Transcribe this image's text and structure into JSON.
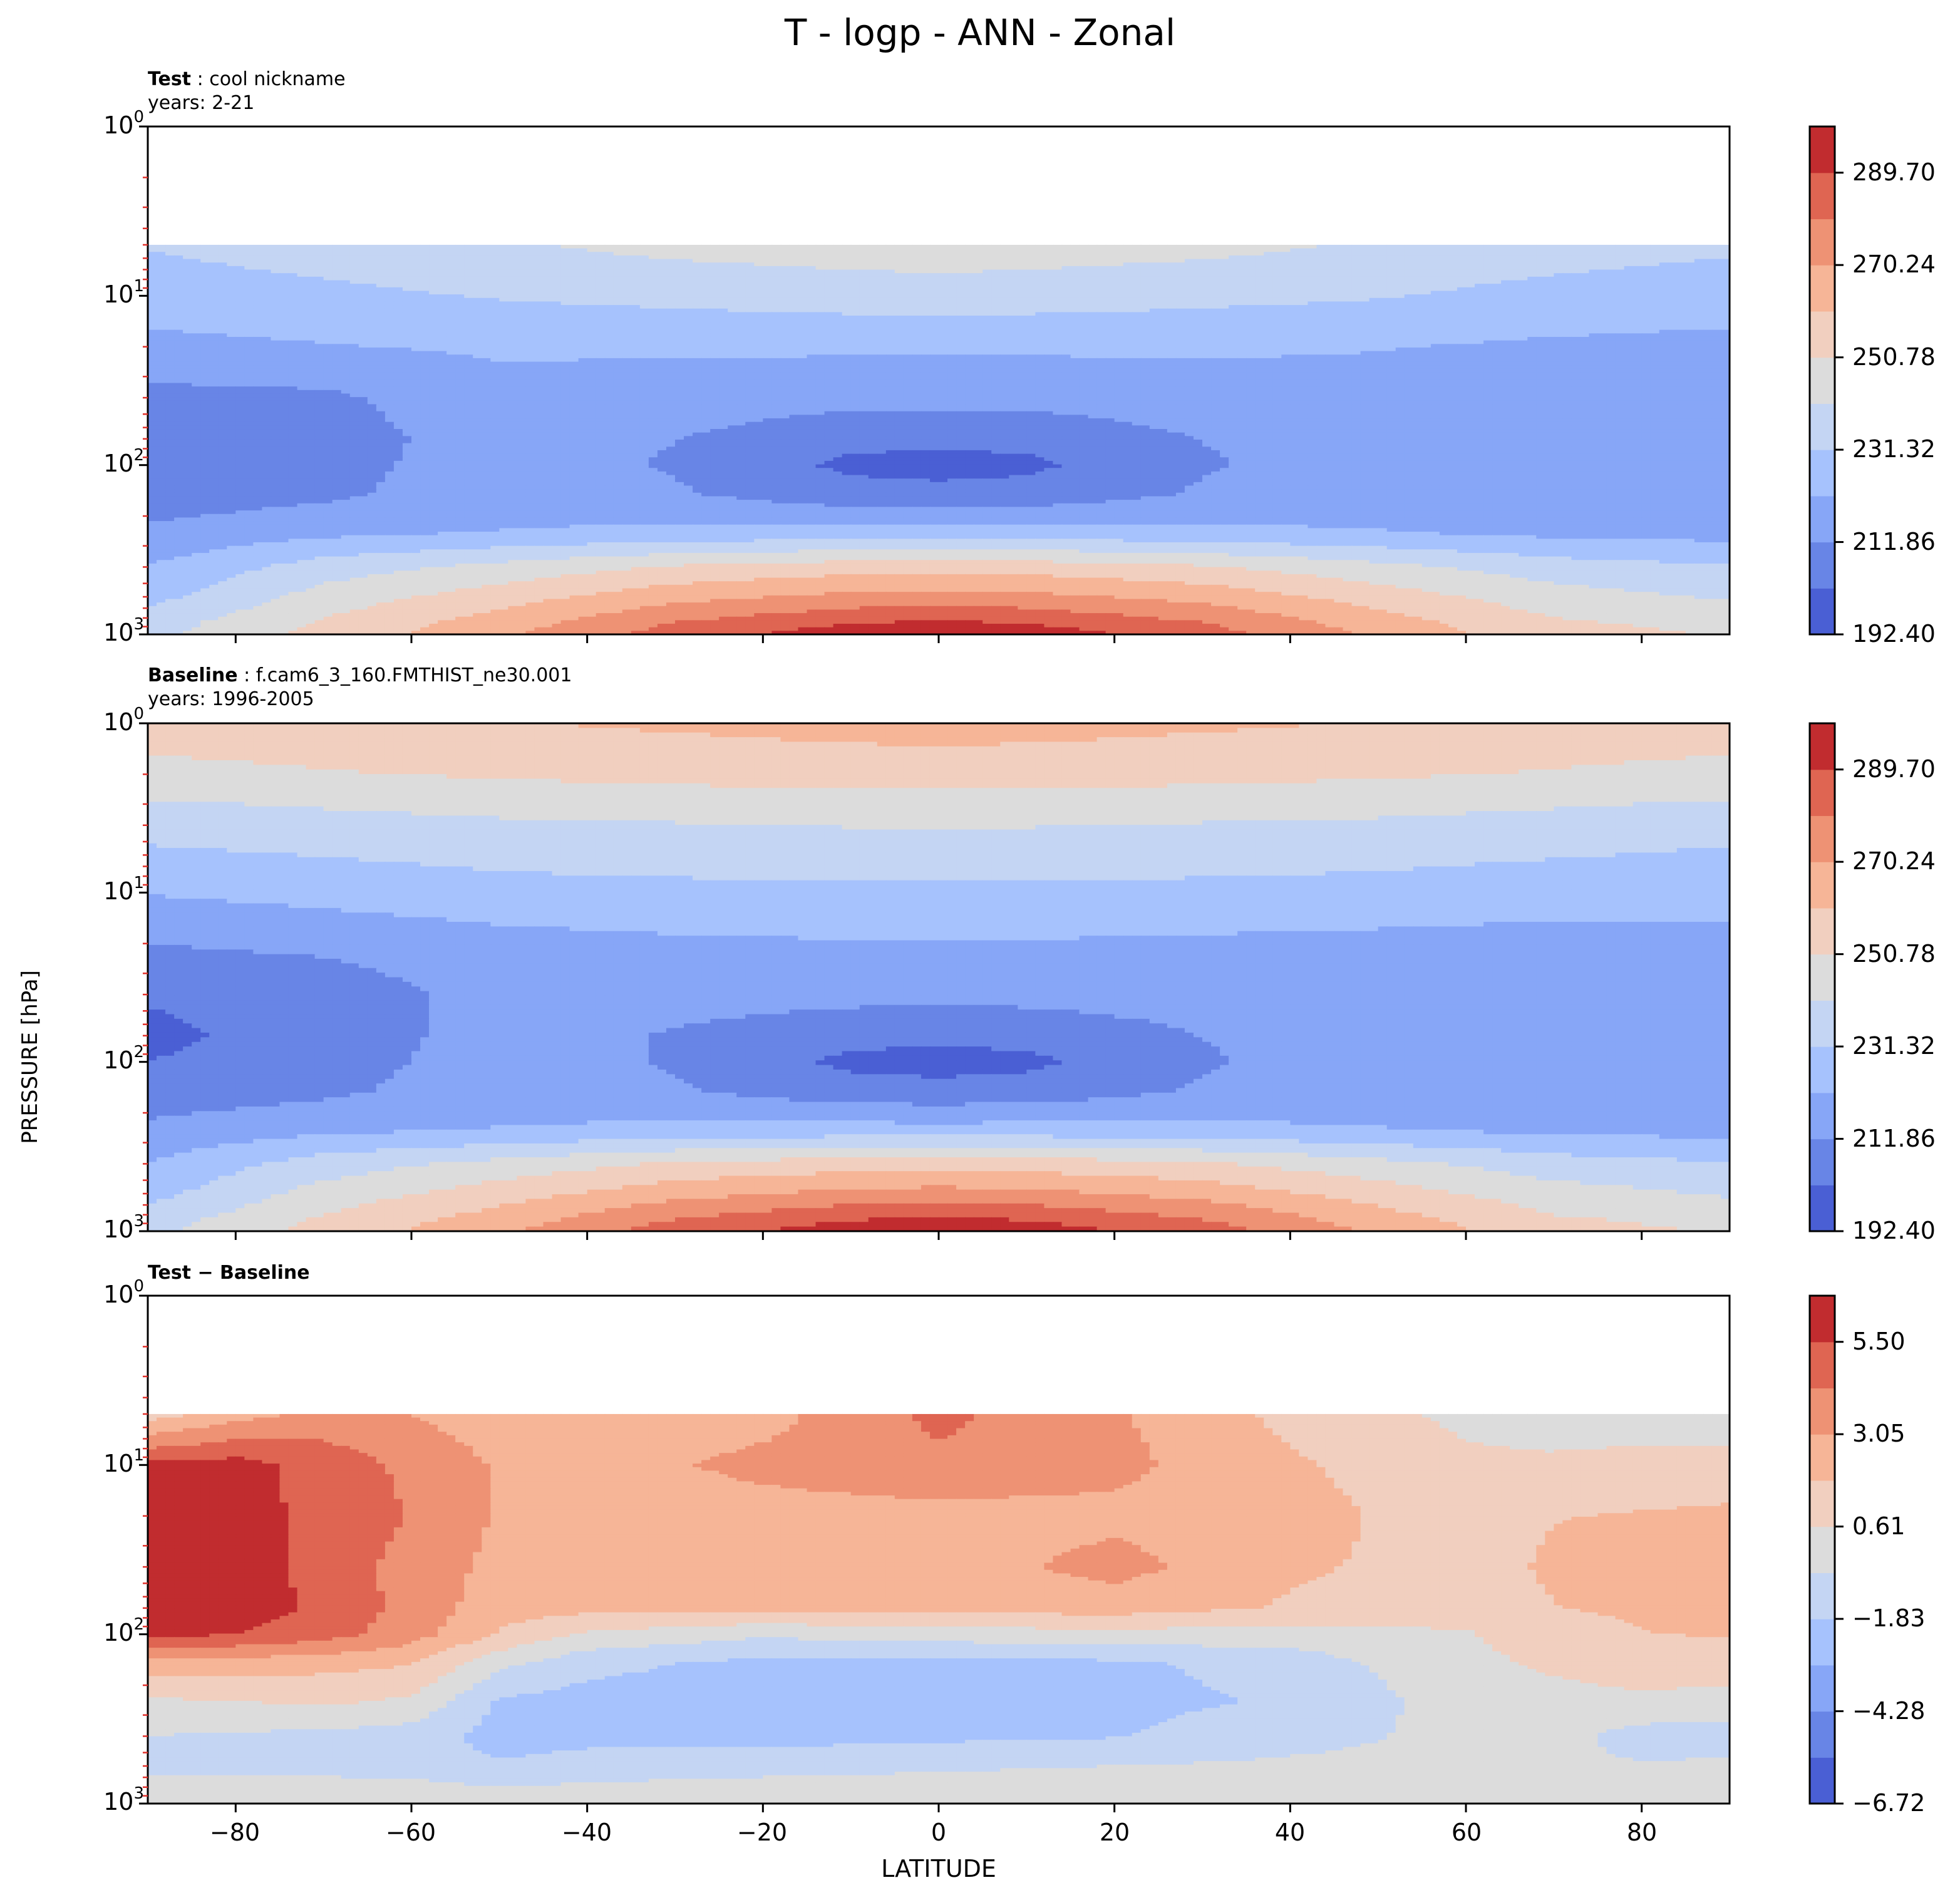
{
  "title": "T - logp - ANN - Zonal",
  "ylabel": "PRESSURE [hPa]",
  "xlabel": "LATITUDE",
  "x_ticks": [
    "−80",
    "−60",
    "−40",
    "−20",
    "0",
    "20",
    "40",
    "60",
    "80"
  ],
  "y_ticks": [
    {
      "base": "10",
      "exp": "0"
    },
    {
      "base": "10",
      "exp": "1"
    },
    {
      "base": "10",
      "exp": "2"
    },
    {
      "base": "10",
      "exp": "3"
    }
  ],
  "panels": [
    {
      "name_label": "Test",
      "name_value": "cool nickname",
      "years": "years: 2-21",
      "colorbar_ticks": [
        "289.70",
        "270.24",
        "250.78",
        "231.32",
        "211.86",
        "192.40"
      ]
    },
    {
      "name_label": "Baseline",
      "name_value": "f.cam6_3_160.FMTHIST_ne30.001",
      "years": "years: 1996-2005",
      "colorbar_ticks": [
        "289.70",
        "270.24",
        "250.78",
        "231.32",
        "211.86",
        "192.40"
      ]
    },
    {
      "name_label": "Test − Baseline",
      "colorbar_ticks": [
        "5.50",
        "3.05",
        "0.61",
        "−1.83",
        "−4.28",
        "−6.72"
      ]
    }
  ],
  "colormap": [
    "#4a5fd4",
    "#6885e6",
    "#87a6f7",
    "#a6c2fd",
    "#c4d5f3",
    "#dcdcdc",
    "#f1cfbf",
    "#f6b597",
    "#ee9274",
    "#df6552",
    "#c12c2f"
  ],
  "chart_data": [
    {
      "type": "heatmap",
      "title": "cool nickname",
      "subtitle": "years: 2-21",
      "xlabel": "LATITUDE",
      "ylabel": "PRESSURE [hPa]",
      "xlim": [
        -90,
        90
      ],
      "ylim": [
        1000,
        1
      ],
      "y_scale": "log",
      "data_top_hPa": 5,
      "contour_levels": [
        192.4,
        202.13,
        211.86,
        221.59,
        231.32,
        241.05,
        250.78,
        260.51,
        270.24,
        279.97,
        289.7,
        299.43
      ],
      "colorbar_ticks": [
        192.4,
        211.86,
        231.32,
        250.78,
        270.24,
        289.7
      ],
      "latitudes": [
        -90,
        -70,
        -50,
        -30,
        -10,
        0,
        10,
        30,
        50,
        70,
        90
      ],
      "pressure_levels_hPa": [
        5,
        10,
        20,
        40,
        70,
        100,
        150,
        250,
        400,
        600,
        850,
        1000
      ],
      "temperature_K": [
        [
          232,
          236,
          240,
          244,
          246,
          247,
          246,
          244,
          240,
          236,
          233
        ],
        [
          226,
          229,
          232,
          234,
          236,
          236,
          236,
          234,
          232,
          228,
          226
        ],
        [
          219,
          221,
          223,
          223,
          223,
          223,
          223,
          223,
          222,
          220,
          219
        ],
        [
          209,
          210,
          218,
          217,
          215,
          215,
          215,
          217,
          218,
          219,
          219
        ],
        [
          206,
          208,
          216,
          212,
          205,
          204,
          205,
          212,
          216,
          219,
          219
        ],
        [
          206,
          209,
          216,
          211,
          200,
          199,
          200,
          211,
          216,
          219,
          219
        ],
        [
          206,
          210,
          217,
          213,
          206,
          205,
          206,
          213,
          217,
          219,
          219
        ],
        [
          214,
          219,
          222,
          224,
          225,
          225,
          225,
          224,
          222,
          219,
          218
        ],
        [
          222,
          236,
          244,
          252,
          256,
          257,
          256,
          252,
          244,
          236,
          232
        ],
        [
          228,
          245,
          256,
          267,
          273,
          274,
          273,
          267,
          256,
          245,
          240
        ],
        [
          236,
          252,
          265,
          280,
          289,
          291,
          289,
          280,
          265,
          252,
          248
        ],
        [
          238,
          254,
          268,
          285,
          295,
          298,
          295,
          285,
          268,
          254,
          250
        ]
      ]
    },
    {
      "type": "heatmap",
      "title": "f.cam6_3_160.FMTHIST_ne30.001",
      "subtitle": "years: 1996-2005",
      "xlabel": "LATITUDE",
      "ylabel": "PRESSURE [hPa]",
      "xlim": [
        -90,
        90
      ],
      "ylim": [
        1000,
        1
      ],
      "y_scale": "log",
      "contour_levels": [
        192.4,
        202.13,
        211.86,
        221.59,
        231.32,
        241.05,
        250.78,
        260.51,
        270.24,
        279.97,
        289.7,
        299.43
      ],
      "colorbar_ticks": [
        192.4,
        211.86,
        231.32,
        250.78,
        270.24,
        289.7
      ],
      "latitudes": [
        -90,
        -70,
        -50,
        -30,
        -10,
        0,
        10,
        30,
        50,
        70,
        90
      ],
      "pressure_levels_hPa": [
        1,
        2,
        3,
        5,
        10,
        20,
        40,
        70,
        100,
        150,
        250,
        400,
        600,
        850,
        1000
      ],
      "temperature_K": [
        [
          255,
          257,
          260,
          262,
          264,
          265,
          264,
          262,
          260,
          257,
          255
        ],
        [
          248,
          250,
          252,
          254,
          255,
          255,
          255,
          254,
          252,
          250,
          248
        ],
        [
          240,
          242,
          244,
          245,
          246,
          246,
          246,
          245,
          244,
          242,
          240
        ],
        [
          232,
          234,
          236,
          237,
          238,
          238,
          238,
          237,
          236,
          234,
          232
        ],
        [
          222,
          225,
          228,
          229,
          229,
          229,
          229,
          229,
          228,
          226,
          225
        ],
        [
          212,
          214,
          218,
          220,
          221,
          221,
          221,
          220,
          219,
          218,
          219
        ],
        [
          203,
          206,
          216,
          216,
          215,
          215,
          215,
          216,
          218,
          219,
          219
        ],
        [
          200,
          206,
          216,
          211,
          205,
          204,
          205,
          212,
          216,
          219,
          219
        ],
        [
          202,
          208,
          216,
          211,
          200,
          199,
          200,
          211,
          216,
          219,
          219
        ],
        [
          206,
          210,
          217,
          213,
          206,
          205,
          206,
          213,
          217,
          219,
          219
        ],
        [
          214,
          219,
          222,
          224,
          225,
          225,
          225,
          224,
          222,
          219,
          218
        ],
        [
          222,
          236,
          244,
          252,
          256,
          257,
          256,
          252,
          244,
          236,
          232
        ],
        [
          228,
          245,
          256,
          267,
          273,
          274,
          273,
          267,
          256,
          245,
          240
        ],
        [
          236,
          252,
          265,
          280,
          289,
          291,
          289,
          280,
          265,
          252,
          248
        ],
        [
          238,
          254,
          268,
          285,
          295,
          298,
          295,
          285,
          268,
          254,
          250
        ]
      ]
    },
    {
      "type": "heatmap",
      "title": "Test − Baseline",
      "xlabel": "LATITUDE",
      "ylabel": "PRESSURE [hPa]",
      "xlim": [
        -90,
        90
      ],
      "ylim": [
        1000,
        1
      ],
      "y_scale": "log",
      "data_top_hPa": 5,
      "contour_levels": [
        -6.72,
        -5.5,
        -4.28,
        -3.05,
        -1.83,
        -0.61,
        0.61,
        1.83,
        3.05,
        4.28,
        5.5,
        6.72
      ],
      "colorbar_ticks": [
        -6.72,
        -4.28,
        -1.83,
        0.61,
        3.05,
        5.5
      ],
      "latitudes": [
        -90,
        -80,
        -70,
        -60,
        -50,
        -40,
        -20,
        0,
        20,
        40,
        60,
        70,
        80,
        90
      ],
      "pressure_levels_hPa": [
        5,
        10,
        20,
        40,
        70,
        100,
        150,
        250,
        400,
        600,
        850,
        1000
      ],
      "difference_K": [
        [
          1.2,
          2.5,
          3.5,
          3.0,
          2.4,
          2.2,
          2.6,
          4.6,
          3.2,
          1.5,
          0.3,
          -0.2,
          -0.4,
          -0.6
        ],
        [
          5.8,
          6.0,
          5.0,
          4.0,
          2.9,
          2.5,
          3.4,
          4.0,
          3.4,
          2.0,
          0.9,
          0.9,
          1.2,
          1.3
        ],
        [
          6.0,
          5.9,
          5.2,
          4.2,
          2.9,
          2.3,
          2.5,
          2.6,
          2.7,
          2.3,
          1.2,
          1.8,
          1.9,
          2.0
        ],
        [
          5.9,
          6.2,
          5.0,
          3.8,
          2.7,
          2.4,
          2.4,
          2.4,
          3.5,
          2.0,
          1.4,
          2.0,
          2.1,
          2.1
        ],
        [
          6.0,
          6.1,
          5.3,
          3.8,
          2.4,
          2.2,
          2.2,
          2.2,
          2.4,
          1.7,
          1.2,
          1.8,
          2.0,
          2.0
        ],
        [
          5.9,
          5.5,
          4.8,
          3.6,
          1.7,
          0.4,
          -0.4,
          0.0,
          0.2,
          0.0,
          0.5,
          1.3,
          1.8,
          1.9
        ],
        [
          2.5,
          2.4,
          2.2,
          1.9,
          -0.3,
          -1.5,
          -2.2,
          -2.4,
          -2.1,
          -1.3,
          0.3,
          0.8,
          1.3,
          1.2
        ],
        [
          0.4,
          0.6,
          0.8,
          0.4,
          -2.0,
          -2.3,
          -2.3,
          -2.4,
          -2.2,
          -1.7,
          0.0,
          0.2,
          0.3,
          0.2
        ],
        [
          -0.6,
          -0.8,
          -0.9,
          -1.2,
          -2.3,
          -2.2,
          -2.3,
          -2.1,
          -1.9,
          -1.0,
          -0.3,
          -0.2,
          -1.1,
          -1.2
        ],
        [
          -1.0,
          -0.9,
          -0.8,
          -1.3,
          -1.7,
          -1.3,
          -1.0,
          -0.8,
          -0.6,
          -0.4,
          -0.3,
          -0.4,
          -0.5,
          -0.4
        ],
        [
          0.2,
          -0.2,
          -0.3,
          0.1,
          -0.4,
          -0.2,
          -0.1,
          0.0,
          0.1,
          0.2,
          0.3,
          0.2,
          0.2,
          0.1
        ],
        [
          0.6,
          0.1,
          -0.1,
          0.2,
          0.0,
          0.1,
          0.1,
          0.1,
          0.1,
          0.2,
          0.2,
          0.1,
          0.1,
          0.1
        ]
      ]
    }
  ]
}
